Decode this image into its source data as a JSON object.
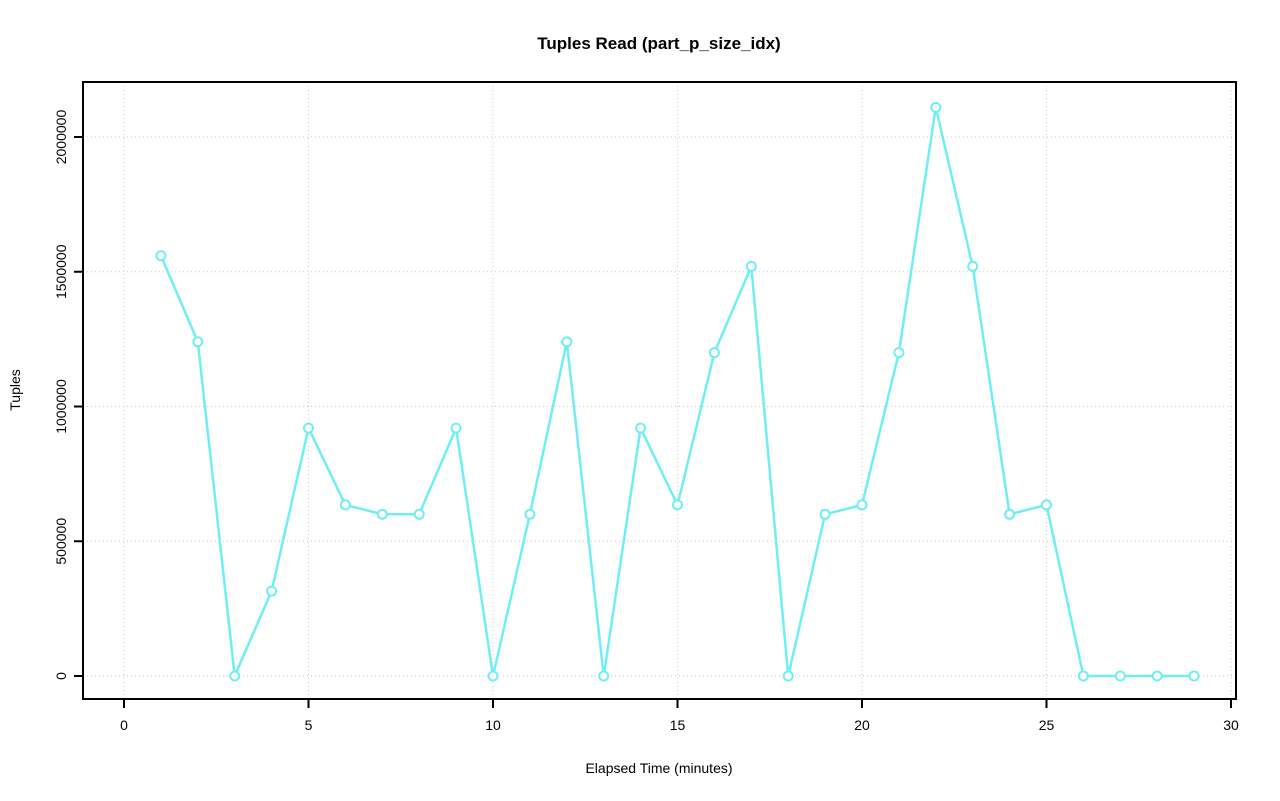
{
  "page": {
    "background_color": "#ffffff",
    "text_color": "#000000"
  },
  "chart_data": {
    "type": "line",
    "title": "Tuples Read (part_p_size_idx)",
    "xlabel": "Elapsed Time (minutes)",
    "ylabel": "Tuples",
    "x": [
      1,
      2,
      3,
      4,
      5,
      6,
      7,
      8,
      9,
      10,
      11,
      12,
      13,
      14,
      15,
      16,
      17,
      18,
      19,
      20,
      21,
      22,
      23,
      24,
      25,
      26,
      27,
      28,
      29
    ],
    "y": [
      1560000,
      1240000,
      0,
      315000,
      920000,
      635000,
      600000,
      600000,
      920000,
      0,
      600000,
      1240000,
      0,
      920000,
      635000,
      1200000,
      1520000,
      0,
      600000,
      635000,
      1200000,
      2110000,
      1520000,
      600000,
      635000,
      0,
      0,
      0,
      0
    ],
    "xlim": [
      0,
      30
    ],
    "ylim": [
      0,
      2110000
    ],
    "xticks": [
      0,
      5,
      10,
      15,
      20,
      25,
      30
    ],
    "xtick_labels": [
      "0",
      "5",
      "10",
      "15",
      "20",
      "25",
      "30"
    ],
    "yticks": [
      0,
      500000,
      1000000,
      1500000,
      2000000
    ],
    "ytick_labels": [
      "0",
      "500000",
      "1000000",
      "1500000",
      "2000000"
    ],
    "grid": true,
    "grid_style": "dotted",
    "legend": "none",
    "marker": "open-circle",
    "line_color": "#6feef3",
    "marker_color": "#6feef3",
    "grid_color": "#c8c8c8",
    "axis_color": "#000000"
  }
}
